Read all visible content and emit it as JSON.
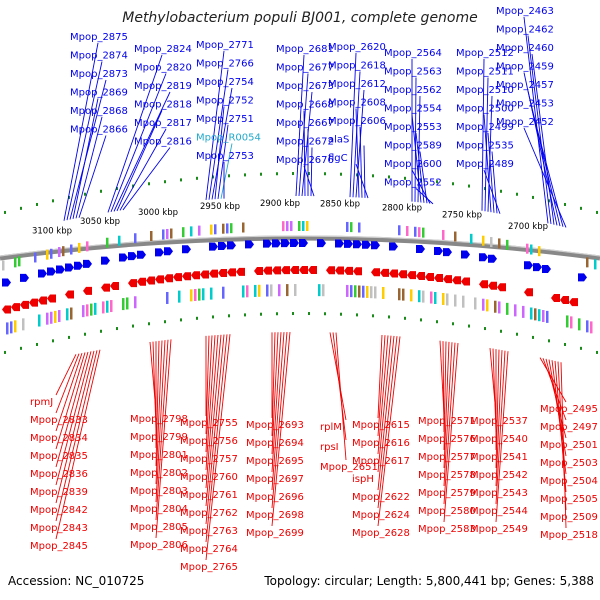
{
  "title": "Methylobacterium populi BJ001, complete genome",
  "footer": {
    "accession": "Accession: NC_010725",
    "summary": "Topology: circular; Length: 5,800,441 bp; Genes: 5,388"
  },
  "colors": {
    "forward": "#0000ee",
    "reverse": "#ee0000",
    "rna": "#22aacc",
    "backbone": "#888888",
    "tick": "#1a8a1a"
  },
  "scale_labels": [
    "3100 kbp",
    "3050 kbp",
    "3000 kbp",
    "2950 kbp",
    "2900 kbp",
    "2850 kbp",
    "2800 kbp",
    "2750 kbp",
    "2700 kbp"
  ],
  "top_labels": [
    "Mpop_2875",
    "Mpop_2874",
    "Mpop_2873",
    "Mpop_2869",
    "Mpop_2868",
    "Mpop_2866",
    "Mpop_2824",
    "Mpop_2820",
    "Mpop_2819",
    "Mpop_2818",
    "Mpop_2817",
    "Mpop_2816",
    "Mpop_2771",
    "Mpop_2766",
    "Mpop_2754",
    "Mpop_2752",
    "Mpop_2751",
    "Mpop_R0054",
    "Mpop_2753",
    "Mpop_2681",
    "Mpop_2677",
    "Mpop_2673",
    "Mpop_2668",
    "Mpop_2667",
    "Mpop_2672",
    "Mpop_2676",
    "Mpop_2620",
    "Mpop_2618",
    "Mpop_2612",
    "Mpop_2608",
    "Mpop_2606",
    "alaS",
    "flgC",
    "Mpop_2564",
    "Mpop_2563",
    "Mpop_2562",
    "Mpop_2554",
    "Mpop_2553",
    "Mpop_2589",
    "Mpop_2600",
    "Mpop_2552",
    "Mpop_2512",
    "Mpop_2511",
    "Mpop_2510",
    "Mpop_2500",
    "Mpop_2499",
    "Mpop_2535",
    "Mpop_2489",
    "Mpop_2463",
    "Mpop_2462",
    "Mpop_2460",
    "Mpop_2459",
    "Mpop_2457",
    "Mpop_2453",
    "Mpop_2452"
  ],
  "bottom_labels": [
    "rpmJ",
    "Mpop_2833",
    "Mpop_2834",
    "Mpop_2835",
    "Mpop_2836",
    "Mpop_2839",
    "Mpop_2842",
    "Mpop_2843",
    "Mpop_2845",
    "Mpop_2798",
    "Mpop_2799",
    "Mpop_2801",
    "Mpop_2802",
    "Mpop_2803",
    "Mpop_2804",
    "Mpop_2805",
    "Mpop_2806",
    "Mpop_2755",
    "Mpop_2756",
    "Mpop_2757",
    "Mpop_2760",
    "Mpop_2761",
    "Mpop_2762",
    "Mpop_2763",
    "Mpop_2764",
    "Mpop_2765",
    "Mpop_2693",
    "Mpop_2694",
    "Mpop_2695",
    "Mpop_2697",
    "Mpop_2696",
    "Mpop_2698",
    "Mpop_2699",
    "rplM",
    "rpsI",
    "Mpop_2651",
    "Mpop_2615",
    "Mpop_2616",
    "Mpop_2617",
    "ispH",
    "Mpop_2622",
    "Mpop_2624",
    "Mpop_2628",
    "Mpop_2571",
    "Mpop_2576",
    "Mpop_2577",
    "Mpop_2578",
    "Mpop_2579",
    "Mpop_2580",
    "Mpop_2583",
    "Mpop_2537",
    "Mpop_2540",
    "Mpop_2541",
    "Mpop_2542",
    "Mpop_2543",
    "Mpop_2544",
    "Mpop_2549",
    "Mpop_2495",
    "Mpop_2497",
    "Mpop_2501",
    "Mpop_2503",
    "Mpop_2504",
    "Mpop_2505",
    "Mpop_2509",
    "Mpop_2518"
  ]
}
